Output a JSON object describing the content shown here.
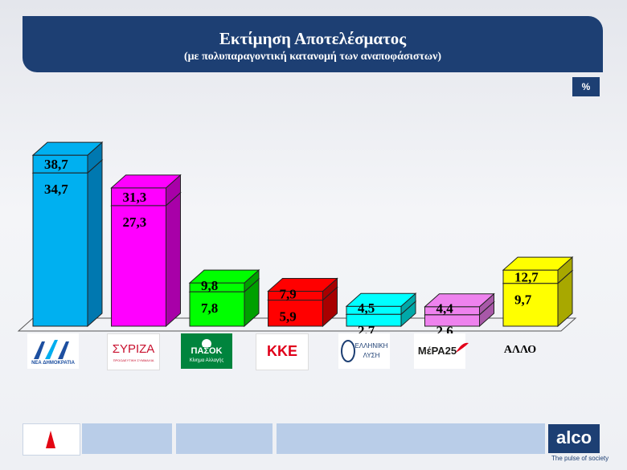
{
  "header": {
    "title": "Εκτίμηση Αποτελέσματος",
    "subtitle": "(με πολυπαραγοντική  κατανομή των αναποφάσιστων)"
  },
  "unit_label": "%",
  "chart_data": {
    "type": "bar",
    "subtype": "stacked-3d",
    "categories": [
      "ΝΕΑ ΔΗΜΟΚΡΑΤΙΑ",
      "ΣΥΡΙΖΑ",
      "ΠΑΣΟΚ",
      "ΚΚΕ",
      "ΕΛΛΗΝΙΚΗ ΛΥΣΗ",
      "ΜέΡΑ25",
      "ΑΛΛΟ"
    ],
    "series": [
      {
        "values": [
          34.7,
          27.3,
          7.8,
          5.9,
          2.7,
          2.6,
          9.7
        ]
      },
      {
        "values": [
          38.7,
          31.3,
          9.8,
          7.9,
          4.5,
          4.4,
          12.7
        ]
      }
    ],
    "colors": [
      "#00b0f0",
      "#ff00ff",
      "#00ff00",
      "#ff0000",
      "#00ffff",
      "#ee82ee",
      "#ffff00"
    ],
    "side_colors": [
      "#0078b0",
      "#a800a8",
      "#00a000",
      "#a80000",
      "#00a8a8",
      "#a858a8",
      "#a8a800"
    ],
    "value_labels": [
      [
        "34,7",
        "38,7"
      ],
      [
        "27,3",
        "31,3"
      ],
      [
        "7,8",
        "9,8"
      ],
      [
        "5,9",
        "7,9"
      ],
      [
        "2,7",
        "4,5"
      ],
      [
        "2,6",
        "4,4"
      ],
      [
        "9,7",
        "12,7"
      ]
    ],
    "ylim": [
      0,
      40
    ],
    "grid": false,
    "legend": "none"
  },
  "logos": {
    "nd": {
      "text": "ΝΕΑ ΔΗΜΟΚΡΑΤΙΑ",
      "color": "#1d4fa0"
    },
    "syriza": {
      "text": "ΣΥΡΙΖΑ",
      "subtext": "ΠΡΟΟΔΕΥΤΙΚΗ ΣΥΜΜΑΧΙΑ",
      "color": "#c8102e"
    },
    "pasok": {
      "text": "ΠΑΣΟΚ",
      "subtext": "Κίνημα Αλλαγής",
      "color": "#00843d"
    },
    "kke": {
      "text": "ΚΚΕ",
      "color": "#e0001a"
    },
    "elliniki_lysi": {
      "text": "ΕΛΛΗΝΙΚΗ",
      "text2": "ΛΥΣΗ",
      "color": "#1d3f73"
    },
    "mera25": {
      "text": "ΜέΡΑ25",
      "color": "#e2001a"
    },
    "allo": {
      "text": "ΑΛΛΟ"
    }
  },
  "footer": {
    "brand": "alco",
    "tagline": "The pulse of society"
  }
}
